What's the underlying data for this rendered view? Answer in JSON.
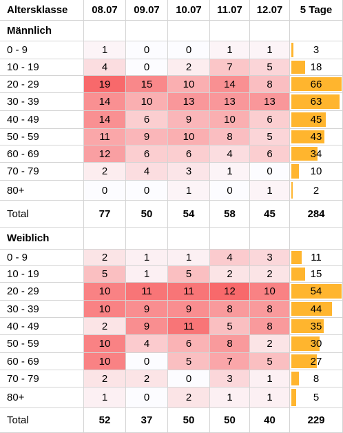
{
  "header": {
    "label": "Altersklasse",
    "dates": [
      "08.07",
      "09.07",
      "10.07",
      "11.07",
      "12.07"
    ],
    "sum_label": "5 Tage"
  },
  "colors": {
    "heat_max": "#f8696b",
    "heat_min": "#fcfcff",
    "bar": "#ffb52e",
    "grid": "#d4d4d4"
  },
  "sections": [
    {
      "title": "Männlich",
      "rows": [
        {
          "label": "0 - 9",
          "values": [
            "1",
            "0",
            "0",
            "1",
            "1"
          ],
          "sum": "3"
        },
        {
          "label": "10 - 19",
          "values": [
            "4",
            "0",
            "2",
            "7",
            "5"
          ],
          "sum": "18"
        },
        {
          "label": "20 - 29",
          "values": [
            "19",
            "15",
            "10",
            "14",
            "8"
          ],
          "sum": "66"
        },
        {
          "label": "30 - 39",
          "values": [
            "14",
            "10",
            "13",
            "13",
            "13"
          ],
          "sum": "63"
        },
        {
          "label": "40 - 49",
          "values": [
            "14",
            "6",
            "9",
            "10",
            "6"
          ],
          "sum": "45"
        },
        {
          "label": "50 - 59",
          "values": [
            "11",
            "9",
            "10",
            "8",
            "5"
          ],
          "sum": "43"
        },
        {
          "label": "60 - 69",
          "values": [
            "12",
            "6",
            "6",
            "4",
            "6"
          ],
          "sum": "34"
        },
        {
          "label": "70 - 79",
          "values": [
            "2",
            "4",
            "3",
            "1",
            "0"
          ],
          "sum": "10"
        },
        {
          "label": "80+",
          "values": [
            "0",
            "0",
            "1",
            "0",
            "1"
          ],
          "sum": "2"
        }
      ],
      "total": {
        "label": "Total",
        "values": [
          "77",
          "50",
          "54",
          "58",
          "45"
        ],
        "sum": "284"
      }
    },
    {
      "title": "Weiblich",
      "rows": [
        {
          "label": "0 - 9",
          "values": [
            "2",
            "1",
            "1",
            "4",
            "3"
          ],
          "sum": "11"
        },
        {
          "label": "10 - 19",
          "values": [
            "5",
            "1",
            "5",
            "2",
            "2"
          ],
          "sum": "15"
        },
        {
          "label": "20 - 29",
          "values": [
            "10",
            "11",
            "11",
            "12",
            "10"
          ],
          "sum": "54"
        },
        {
          "label": "30 - 39",
          "values": [
            "10",
            "9",
            "9",
            "8",
            "8"
          ],
          "sum": "44"
        },
        {
          "label": "40 - 49",
          "values": [
            "2",
            "9",
            "11",
            "5",
            "8"
          ],
          "sum": "35"
        },
        {
          "label": "50 - 59",
          "values": [
            "10",
            "4",
            "6",
            "8",
            "2"
          ],
          "sum": "30"
        },
        {
          "label": "60 - 69",
          "values": [
            "10",
            "0",
            "5",
            "7",
            "5"
          ],
          "sum": "27"
        },
        {
          "label": "70 - 79",
          "values": [
            "2",
            "2",
            "0",
            "3",
            "1"
          ],
          "sum": "8"
        },
        {
          "label": "80+",
          "values": [
            "1",
            "0",
            "2",
            "1",
            "1"
          ],
          "sum": "5"
        }
      ],
      "total": {
        "label": "Total",
        "values": [
          "52",
          "37",
          "50",
          "50",
          "40"
        ],
        "sum": "229"
      }
    }
  ]
}
